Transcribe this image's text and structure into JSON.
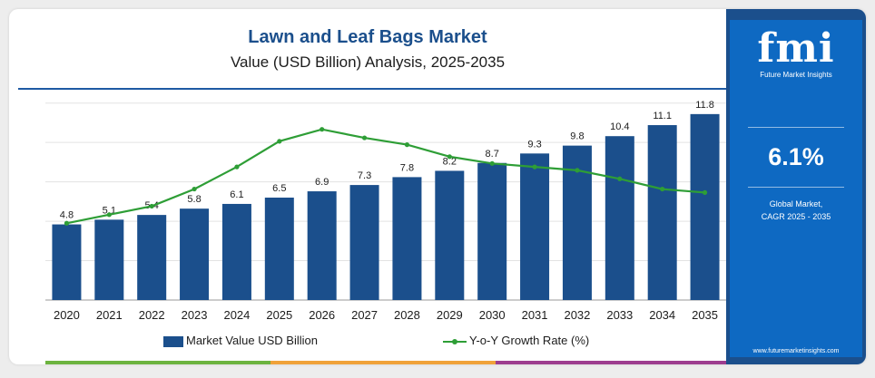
{
  "header": {
    "title": "Lawn and Leaf Bags Market",
    "subtitle": "Value (USD Billion) Analysis, 2025-2035"
  },
  "legend": {
    "bar_label": "Market Value USD Billion",
    "line_label": "Y-o-Y Growth Rate (%)"
  },
  "sidebar": {
    "logo_text": "fmi",
    "logo_subtitle": "Future Market Insights",
    "cagr_value": "6.1%",
    "cagr_label_line1": "Global Market,",
    "cagr_label_line2": "CAGR 2025 - 2035",
    "website": "www.futuremarketinsights.com"
  },
  "colors": {
    "bar": "#1b4f8c",
    "line": "#2e9e36",
    "accent": "#1e5aa3",
    "sidebar": "#0e69c2",
    "stripe": [
      "#6cb33f",
      "#f0a23a",
      "#9d3d8f"
    ]
  },
  "chart_data": {
    "type": "bar",
    "categories": [
      "2020",
      "2021",
      "2022",
      "2023",
      "2024",
      "2025",
      "2026",
      "2027",
      "2028",
      "2029",
      "2030",
      "2031",
      "2032",
      "2033",
      "2034",
      "2035"
    ],
    "series": [
      {
        "name": "Market Value USD Billion",
        "type": "bar",
        "values": [
          4.8,
          5.1,
          5.4,
          5.8,
          6.1,
          6.5,
          6.9,
          7.3,
          7.8,
          8.2,
          8.7,
          9.3,
          9.8,
          10.4,
          11.1,
          11.8
        ],
        "labels": [
          "4.8",
          "5.1",
          "5.4",
          "5.8",
          "6.1",
          "6.5",
          "6.9",
          "7.3",
          "7.8",
          "8.2",
          "8.7",
          "9.3",
          "9.8",
          "10.4",
          "11.1",
          "11.8"
        ]
      },
      {
        "name": "Y-o-Y Growth Rate (%)",
        "type": "line",
        "values": [
          4.5,
          5.0,
          5.5,
          6.5,
          7.8,
          9.3,
          10.0,
          9.5,
          9.1,
          8.4,
          8.0,
          7.8,
          7.6,
          7.1,
          6.5,
          6.3
        ]
      }
    ],
    "ylim": [
      0,
      13
    ],
    "line_ylim": [
      0,
      12
    ],
    "grid": true,
    "legend_position": "bottom"
  }
}
